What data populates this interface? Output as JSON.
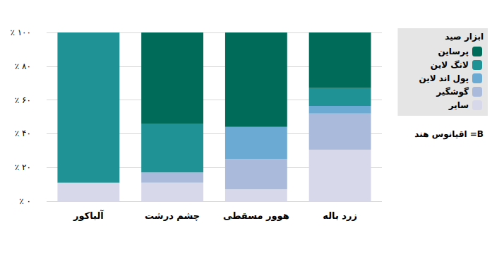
{
  "chart_data": {
    "type": "bar",
    "stacked": true,
    "grid": true,
    "legend": "top-right",
    "legend_title": "ابزار صید",
    "annotations": [
      "اقیانوس هند =B"
    ],
    "categories": [
      "آلباکور",
      "چشم درشت",
      "هوور مسقطی",
      "زرد باله"
    ],
    "ylim": [
      0,
      100
    ],
    "yticks": [
      {
        "value": 0,
        "label": "٪ ۰"
      },
      {
        "value": 20,
        "label": "٪ ۲۰"
      },
      {
        "value": 40,
        "label": "٪ ۴۰"
      },
      {
        "value": 60,
        "label": "٪ ۶۰"
      },
      {
        "value": 80,
        "label": "٪ ۸۰"
      },
      {
        "value": 100,
        "label": "٪ ۱۰۰"
      }
    ],
    "series": [
      {
        "name": "پرساین",
        "color": "#006b58",
        "values": [
          0,
          54,
          56,
          33
        ]
      },
      {
        "name": "لانگ لاین",
        "color": "#1f9296",
        "values": [
          89,
          29,
          0,
          10.5
        ]
      },
      {
        "name": "پول اند لاین",
        "color": "#6aaad3",
        "values": [
          0,
          0,
          19,
          4.5
        ]
      },
      {
        "name": "گوشگیر",
        "color": "#a9badb",
        "values": [
          0,
          6,
          18,
          21.5
        ]
      },
      {
        "name": "سایر",
        "color": "#d8d8eb",
        "values": [
          11,
          11,
          7,
          30.5
        ]
      }
    ]
  }
}
